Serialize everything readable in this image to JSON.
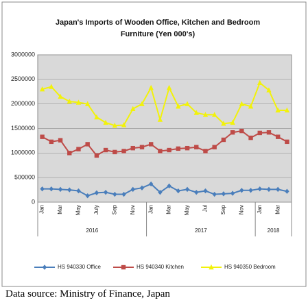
{
  "chart_data": {
    "type": "line",
    "title": "Japan's Imports of  Wooden Office, Kitchen and Bedroom Furniture (Yen 000's)",
    "categories": [
      "Jan",
      null,
      "Mar",
      null,
      "May",
      null,
      "July",
      null,
      "Sep",
      null,
      "Nov",
      null,
      "Jan",
      null,
      "Mar",
      null,
      "May",
      null,
      "Jul",
      null,
      "Sep",
      null,
      "Nov",
      null,
      "Jan",
      null,
      "Mar",
      null
    ],
    "years": [
      "2016",
      "2017",
      "2018"
    ],
    "series": [
      {
        "name": "HS 940330 Office",
        "color": "#4a7ebb",
        "marker": "diamond",
        "values": [
          270000,
          270000,
          260000,
          250000,
          230000,
          130000,
          190000,
          200000,
          160000,
          160000,
          260000,
          290000,
          370000,
          200000,
          330000,
          230000,
          260000,
          200000,
          230000,
          160000,
          170000,
          180000,
          240000,
          240000,
          270000,
          260000,
          260000,
          220000
        ]
      },
      {
        "name": "HS 940340 Kitchen",
        "color": "#be4b48",
        "marker": "square",
        "values": [
          1330000,
          1230000,
          1260000,
          1000000,
          1080000,
          1180000,
          950000,
          1060000,
          1020000,
          1040000,
          1100000,
          1120000,
          1180000,
          1040000,
          1060000,
          1090000,
          1100000,
          1120000,
          1040000,
          1120000,
          1270000,
          1420000,
          1450000,
          1310000,
          1410000,
          1420000,
          1330000,
          1230000
        ]
      },
      {
        "name": "HS 940350 Bedroom",
        "color": "#f2f20a",
        "marker": "triangle",
        "values": [
          2300000,
          2350000,
          2150000,
          2050000,
          2030000,
          2000000,
          1730000,
          1620000,
          1560000,
          1570000,
          1900000,
          2000000,
          2330000,
          1680000,
          2330000,
          1950000,
          2000000,
          1820000,
          1780000,
          1780000,
          1600000,
          1620000,
          2000000,
          1950000,
          2430000,
          2280000,
          1870000,
          1870000
        ]
      }
    ],
    "ylim": [
      0,
      3000000
    ],
    "yticks": [
      0,
      500000,
      1000000,
      1500000,
      2000000,
      2500000,
      3000000
    ],
    "grid": true,
    "legend": "bottom"
  },
  "source": "Data source: Ministry of Finance, Japan"
}
